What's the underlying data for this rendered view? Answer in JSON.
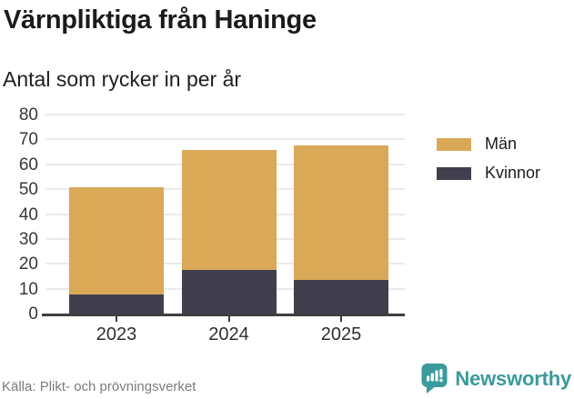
{
  "header": {
    "title": "Värnpliktiga från Haninge",
    "subtitle": "Antal som rycker in per år"
  },
  "chart_data": {
    "type": "bar",
    "stacked": true,
    "title": "Värnpliktiga från Haninge",
    "subtitle": "Antal som rycker in per år",
    "categories": [
      "2023",
      "2024",
      "2025"
    ],
    "series": [
      {
        "name": "Män",
        "color": "#d9a958",
        "values": [
          43,
          48,
          54
        ]
      },
      {
        "name": "Kvinnor",
        "color": "#413f4e",
        "values": [
          8,
          18,
          14
        ]
      }
    ],
    "stack_totals": [
      51,
      66,
      68
    ],
    "stack_order_bottom_to_top": [
      "Kvinnor",
      "Män"
    ],
    "ylim": [
      0,
      80
    ],
    "yticks": [
      0,
      10,
      20,
      30,
      40,
      50,
      60,
      70,
      80
    ],
    "xlabel": "",
    "ylabel": "",
    "grid": true,
    "legend_position": "right"
  },
  "footer": {
    "source": "Källa: Plikt- och prövningsverket",
    "brand": "Newsworthy",
    "brand_color": "#3a9a9c",
    "brand_icon": "speech-bubble-bar-chart-icon"
  },
  "colors": {
    "background": "#ffffff",
    "gridline": "#eaeaea",
    "axis": "#3e3e3e",
    "text_dark": "#1b1b1b",
    "text_muted": "#7b7b7b",
    "men": "#d9a958",
    "women": "#413f4e",
    "brand_teal": "#3a9a9c"
  }
}
